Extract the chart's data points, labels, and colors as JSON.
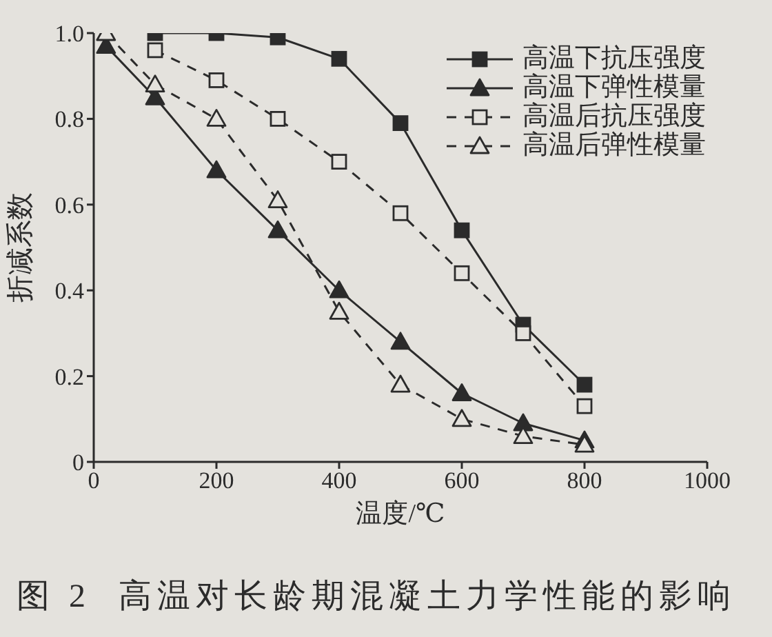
{
  "chart_data": {
    "type": "line",
    "title": "图 2  高温对长龄期混凝土力学性能的影响",
    "xlabel": "温度/℃",
    "ylabel": "折减系数",
    "x": [
      20,
      100,
      200,
      300,
      400,
      500,
      600,
      700,
      800
    ],
    "series": [
      {
        "name": "高温下抗压强度",
        "color": "#2b2b2b",
        "marker": "square",
        "line_style": "solid",
        "values": [
          null,
          1.0,
          1.0,
          0.99,
          0.94,
          0.79,
          0.54,
          0.32,
          0.18
        ]
      },
      {
        "name": "高温下弹性模量",
        "color": "#2b2b2b",
        "marker": "triangle",
        "line_style": "solid",
        "values": [
          0.97,
          0.85,
          0.68,
          0.54,
          0.4,
          0.28,
          0.16,
          0.09,
          0.05
        ]
      },
      {
        "name": "高温后抗压强度",
        "color": "#2b2b2b",
        "marker": "square",
        "line_style": "dashed",
        "values": [
          null,
          0.96,
          0.89,
          0.8,
          0.7,
          0.58,
          0.44,
          0.3,
          0.13
        ]
      },
      {
        "name": "高温后弹性模量",
        "color": "#2b2b2b",
        "marker": "triangle",
        "line_style": "dashed",
        "values": [
          1.0,
          0.88,
          0.8,
          0.61,
          0.35,
          0.18,
          0.1,
          0.06,
          0.04
        ]
      }
    ],
    "xlim": [
      0,
      1000
    ],
    "xticks": [
      0,
      200,
      400,
      600,
      800,
      1000
    ],
    "ylim": [
      0,
      1
    ],
    "yticks": [
      0,
      0.2,
      0.4,
      0.6,
      0.8,
      {
        "value": 1,
        "label": "1.0"
      }
    ],
    "legend": "top right"
  }
}
